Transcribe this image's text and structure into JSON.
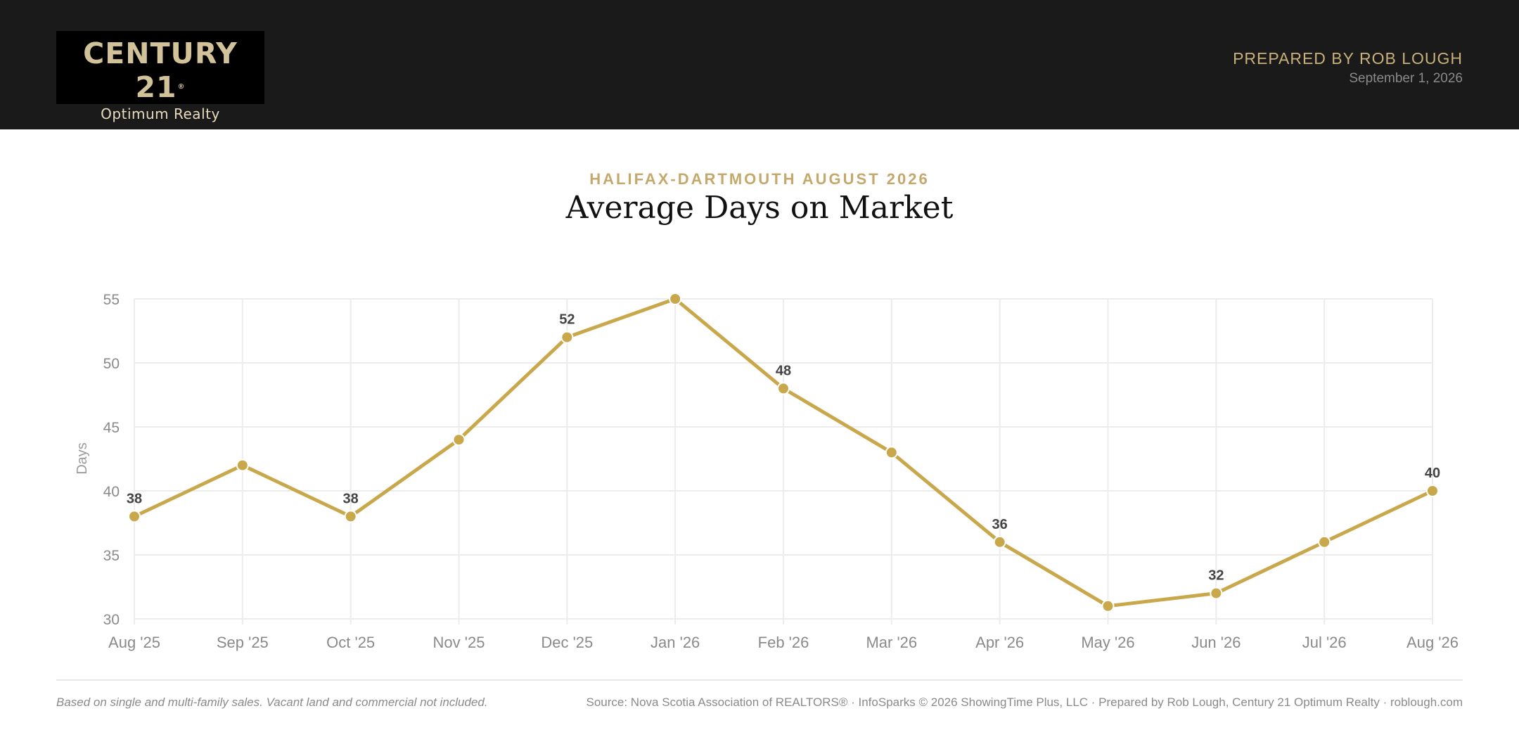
{
  "header": {
    "logo_main": "CENTURY 21",
    "logo_reg": "®",
    "logo_sub": "Optimum Realty",
    "prepared_by": "PREPARED BY ROB LOUGH",
    "date": "September 1, 2026"
  },
  "kicker": "HALIFAX-DARTMOUTH AUGUST 2026",
  "chart_data": {
    "type": "line",
    "title": "Average Days on Market",
    "categories": [
      "Aug '25",
      "Sep '25",
      "Oct '25",
      "Nov '25",
      "Dec '25",
      "Jan '26",
      "Feb '26",
      "Mar '26",
      "Apr '26",
      "May '26",
      "Jun '26",
      "Jul '26",
      "Aug '26"
    ],
    "series": [
      {
        "values": [
          38,
          42,
          38,
          44,
          52,
          55,
          48,
          43,
          36,
          31,
          32,
          36,
          40
        ]
      }
    ],
    "labeled_points": [
      0,
      2,
      4,
      6,
      8,
      10,
      12
    ],
    "ylabel": "Days",
    "ylim": [
      30,
      55
    ],
    "yticks": [
      30,
      35,
      40,
      45,
      50,
      55
    ],
    "grid": true,
    "line_color": "#c9a84c"
  },
  "footer": {
    "note": "Based on single and multi-family sales. Vacant land and commercial not included.",
    "source": "Source: Nova Scotia Association of REALTORS® · InfoSparks © 2026 ShowingTime Plus, LLC · Prepared by Rob Lough, Century 21 Optimum Realty · roblough.com"
  }
}
